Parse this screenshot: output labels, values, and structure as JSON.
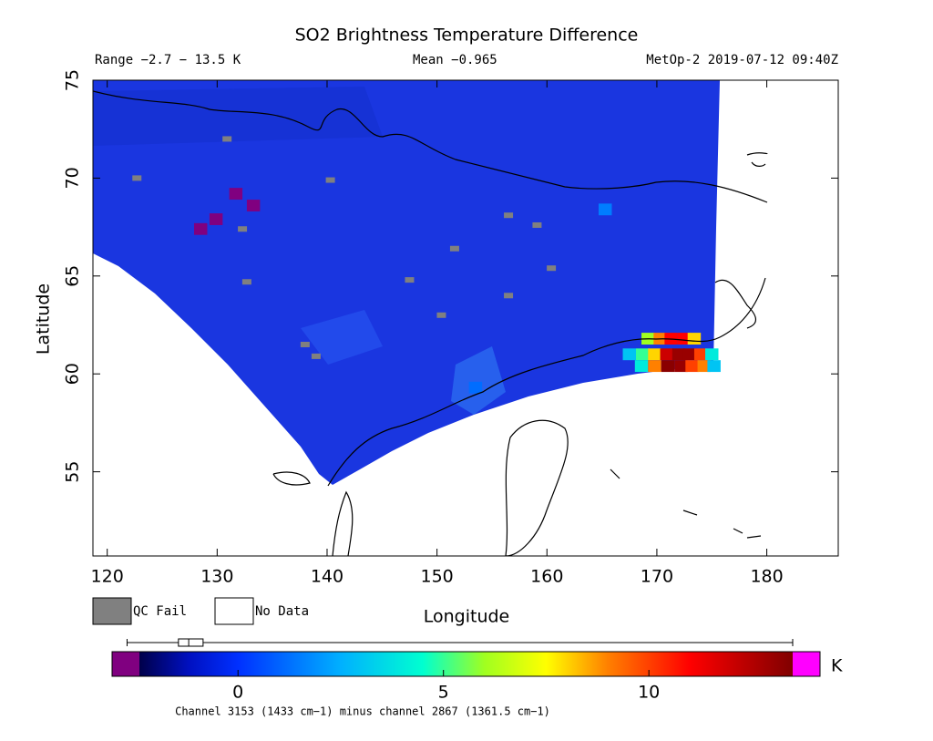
{
  "chart_data": {
    "type": "map",
    "title": "SO2 Brightness Temperature Difference",
    "range_label": "Range −2.7 − 13.5 K",
    "mean_label": "Mean −0.965",
    "satellite_label": "MetOp-2 2019-07-12 09:40Z",
    "xlabel": "Longitude",
    "ylabel": "Latitude",
    "xlim": [
      118.7,
      186.5
    ],
    "ylim": [
      50.7,
      75
    ],
    "xticks": [
      120,
      130,
      140,
      150,
      160,
      170,
      180
    ],
    "yticks": [
      55,
      60,
      65,
      70,
      75
    ],
    "legend": [
      {
        "name": "QC Fail",
        "color": "#808080"
      },
      {
        "name": "No Data",
        "color": "#ffffff"
      }
    ],
    "cells": [
      {
        "lon": 169.2,
        "lat": 61.8,
        "value": 6
      },
      {
        "lon": 170.3,
        "lat": 61.8,
        "value": 9
      },
      {
        "lon": 171.3,
        "lat": 61.8,
        "value": 11
      },
      {
        "lon": 172.5,
        "lat": 61.8,
        "value": 11
      },
      {
        "lon": 173.4,
        "lat": 61.8,
        "value": 8
      },
      {
        "lon": 167.5,
        "lat": 61.0,
        "value": 3
      },
      {
        "lon": 168.7,
        "lat": 61.0,
        "value": 5
      },
      {
        "lon": 169.8,
        "lat": 61.0,
        "value": 8
      },
      {
        "lon": 170.9,
        "lat": 61.0,
        "value": 12
      },
      {
        "lon": 172.0,
        "lat": 61.0,
        "value": 13
      },
      {
        "lon": 173.0,
        "lat": 61.0,
        "value": 13
      },
      {
        "lon": 174.0,
        "lat": 61.0,
        "value": 10
      },
      {
        "lon": 175.0,
        "lat": 61.0,
        "value": 4
      },
      {
        "lon": 168.6,
        "lat": 60.4,
        "value": 4
      },
      {
        "lon": 169.8,
        "lat": 60.4,
        "value": 9
      },
      {
        "lon": 171.0,
        "lat": 60.4,
        "value": 13.3
      },
      {
        "lon": 172.2,
        "lat": 60.4,
        "value": 13
      },
      {
        "lon": 173.2,
        "lat": 60.4,
        "value": 10
      },
      {
        "lon": 174.3,
        "lat": 60.4,
        "value": 9
      },
      {
        "lon": 175.2,
        "lat": 60.4,
        "value": 3
      },
      {
        "lon": 165.3,
        "lat": 68.4,
        "value": 1.5
      },
      {
        "lon": 153.5,
        "lat": 59.3,
        "value": 1.2
      },
      {
        "lon": 131.7,
        "lat": 69.2,
        "value": -2.7
      },
      {
        "lon": 129.9,
        "lat": 67.9,
        "value": -2.7
      },
      {
        "lon": 128.5,
        "lat": 67.4,
        "value": -2.7
      },
      {
        "lon": 133.3,
        "lat": 68.6,
        "value": -2.7
      }
    ],
    "qc_fail": [
      {
        "lon": 130.9,
        "lat": 72.0
      },
      {
        "lon": 122.7,
        "lat": 70.0
      },
      {
        "lon": 140.3,
        "lat": 69.9
      },
      {
        "lon": 132.3,
        "lat": 67.4
      },
      {
        "lon": 132.7,
        "lat": 64.7
      },
      {
        "lon": 138.0,
        "lat": 61.5
      },
      {
        "lon": 139.0,
        "lat": 60.9
      },
      {
        "lon": 151.6,
        "lat": 66.4
      },
      {
        "lon": 159.1,
        "lat": 67.6
      },
      {
        "lon": 156.5,
        "lat": 68.1
      },
      {
        "lon": 160.4,
        "lat": 65.4
      },
      {
        "lon": 147.5,
        "lat": 64.8
      },
      {
        "lon": 150.4,
        "lat": 63.0
      },
      {
        "lon": 156.5,
        "lat": 64.0
      }
    ],
    "colorbar": {
      "lim": [
        -2.4,
        13.5
      ],
      "ticks": [
        0,
        5,
        10
      ],
      "unit": "K",
      "under_color": "#800080",
      "over_color": "#ff00ff",
      "stops": [
        {
          "value": -2.4,
          "color": "#00004a"
        },
        {
          "value": -1.2,
          "color": "#0010c0"
        },
        {
          "value": 0,
          "color": "#0030ff"
        },
        {
          "value": 2.5,
          "color": "#00b0ff"
        },
        {
          "value": 4.5,
          "color": "#00ffd0"
        },
        {
          "value": 6,
          "color": "#a0ff20"
        },
        {
          "value": 7.5,
          "color": "#ffff00"
        },
        {
          "value": 9,
          "color": "#ff8000"
        },
        {
          "value": 11,
          "color": "#ff0000"
        },
        {
          "value": 13.5,
          "color": "#800000"
        }
      ],
      "caption": "Channel 3153 (1433 cm−1) minus channel 2867 (1361.5 cm−1)"
    },
    "distribution": {
      "min": -2.7,
      "q1": -1.45,
      "median": -1.2,
      "q3": -0.85,
      "max": 13.5
    }
  }
}
